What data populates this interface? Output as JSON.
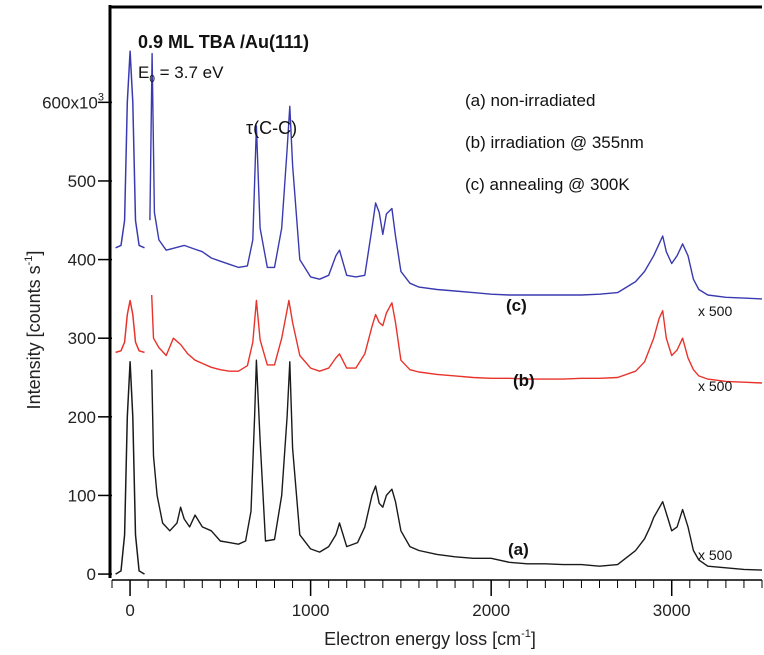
{
  "chart_data": {
    "type": "line",
    "title": "0.9 ML TBA /Au(111)",
    "subtitle": {
      "prefix": "E",
      "subscript": "0",
      "rest": " = 3.7 eV"
    },
    "xlabel": {
      "text": "Electron energy loss [cm",
      "sup": "-1",
      "close": "]"
    },
    "ylabel": {
      "text": "Intensity [counts s",
      "sup": "-1",
      "close": "]"
    },
    "xlim": [
      -100,
      3500
    ],
    "ylim": [
      -5,
      720
    ],
    "x_ticks": [
      0,
      1000,
      2000,
      3000
    ],
    "x_tick_labels": [
      "0",
      "1000",
      "2000",
      "3000"
    ],
    "y_ticks": [
      0,
      100,
      200,
      300,
      400,
      500,
      600
    ],
    "y_tick_labels": [
      "0",
      "100",
      "200",
      "300",
      "400",
      "500",
      "600x10"
    ],
    "y_top_label_sup": "3",
    "legend": [
      "(a) non-irradiated",
      "(b) irradiation @ 355nm",
      "(c) annealing @ 300K"
    ],
    "legend_position": "top-right",
    "peak_annotation": "τ(C-C)",
    "colors": {
      "a": "#1a1a1a",
      "b": "#e8332b",
      "c": "#3a3ab0"
    },
    "series": [
      {
        "name": "(a)",
        "scale_label": "x 500",
        "elastic_x": [
          -80,
          -50,
          -30,
          -15,
          0,
          15,
          30,
          50,
          80
        ],
        "elastic_y": [
          0,
          4,
          50,
          200,
          270,
          200,
          50,
          4,
          0
        ],
        "x": [
          120,
          130,
          150,
          180,
          220,
          260,
          280,
          300,
          330,
          360,
          400,
          450,
          500,
          550,
          600,
          640,
          670,
          690,
          700,
          720,
          750,
          800,
          840,
          870,
          885,
          900,
          940,
          1000,
          1050,
          1100,
          1140,
          1160,
          1200,
          1260,
          1300,
          1340,
          1360,
          1380,
          1400,
          1420,
          1450,
          1470,
          1500,
          1550,
          1600,
          1700,
          1800,
          1900,
          2000,
          2100,
          2200,
          2300,
          2400,
          2500,
          2600,
          2700,
          2800,
          2850,
          2880,
          2900,
          2920,
          2950,
          2980,
          3000,
          3030,
          3060,
          3090,
          3120,
          3150,
          3200,
          3300,
          3400,
          3500
        ],
        "y": [
          260,
          150,
          100,
          65,
          55,
          65,
          85,
          70,
          60,
          75,
          60,
          55,
          42,
          40,
          38,
          42,
          80,
          200,
          272,
          170,
          42,
          44,
          100,
          200,
          270,
          160,
          50,
          32,
          28,
          35,
          50,
          65,
          35,
          40,
          60,
          100,
          112,
          90,
          85,
          100,
          108,
          92,
          55,
          35,
          30,
          25,
          22,
          20,
          20,
          15,
          13,
          13,
          12,
          12,
          10,
          12,
          30,
          45,
          60,
          72,
          80,
          92,
          70,
          55,
          60,
          82,
          60,
          30,
          18,
          10,
          8,
          6,
          5
        ]
      },
      {
        "name": "(b)",
        "scale_label": "x 500",
        "elastic_x": [
          -80,
          -50,
          -30,
          -15,
          0,
          15,
          30,
          50,
          80
        ],
        "elastic_y": [
          282,
          284,
          295,
          330,
          348,
          330,
          295,
          284,
          282
        ],
        "x": [
          120,
          130,
          160,
          200,
          240,
          280,
          320,
          360,
          400,
          450,
          500,
          550,
          600,
          650,
          680,
          700,
          720,
          760,
          800,
          840,
          880,
          900,
          940,
          1000,
          1050,
          1100,
          1140,
          1160,
          1200,
          1250,
          1300,
          1340,
          1360,
          1380,
          1400,
          1420,
          1450,
          1470,
          1500,
          1550,
          1600,
          1700,
          1800,
          1900,
          2000,
          2100,
          2200,
          2300,
          2400,
          2500,
          2600,
          2700,
          2800,
          2850,
          2900,
          2930,
          2950,
          2970,
          3000,
          3030,
          3060,
          3090,
          3120,
          3150,
          3200,
          3300,
          3400,
          3500
        ],
        "y": [
          355,
          300,
          288,
          278,
          300,
          292,
          280,
          272,
          268,
          263,
          260,
          258,
          258,
          265,
          295,
          348,
          298,
          266,
          266,
          300,
          348,
          320,
          278,
          262,
          258,
          262,
          275,
          280,
          262,
          262,
          280,
          315,
          330,
          320,
          316,
          332,
          345,
          320,
          272,
          260,
          257,
          254,
          252,
          250,
          249,
          249,
          248,
          248,
          248,
          249,
          249,
          250,
          258,
          270,
          300,
          325,
          335,
          300,
          278,
          285,
          300,
          275,
          260,
          252,
          248,
          245,
          244,
          243
        ]
      },
      {
        "name": "(c)",
        "scale_label": "x 500",
        "elastic_x": [
          -80,
          -50,
          -30,
          -15,
          0,
          15,
          30,
          50,
          80
        ],
        "elastic_y": [
          415,
          418,
          450,
          600,
          665,
          600,
          450,
          418,
          415
        ],
        "x": [
          110,
          122,
          135,
          160,
          200,
          250,
          300,
          350,
          400,
          450,
          500,
          550,
          600,
          650,
          680,
          700,
          720,
          760,
          800,
          840,
          870,
          885,
          900,
          940,
          1000,
          1050,
          1100,
          1140,
          1160,
          1200,
          1250,
          1300,
          1340,
          1360,
          1380,
          1400,
          1420,
          1450,
          1470,
          1500,
          1550,
          1600,
          1700,
          1800,
          1900,
          2000,
          2100,
          2200,
          2300,
          2400,
          2500,
          2600,
          2700,
          2800,
          2850,
          2900,
          2930,
          2950,
          2970,
          3000,
          3030,
          3060,
          3090,
          3120,
          3150,
          3200,
          3300,
          3400,
          3500
        ],
        "y": [
          450,
          662,
          460,
          425,
          412,
          415,
          418,
          414,
          410,
          402,
          398,
          394,
          390,
          392,
          425,
          570,
          440,
          390,
          390,
          440,
          540,
          595,
          520,
          400,
          378,
          375,
          380,
          405,
          412,
          380,
          378,
          380,
          440,
          472,
          460,
          432,
          458,
          465,
          430,
          385,
          370,
          365,
          362,
          360,
          358,
          356,
          355,
          355,
          355,
          355,
          355,
          356,
          358,
          372,
          385,
          405,
          420,
          430,
          410,
          395,
          405,
          420,
          405,
          375,
          362,
          355,
          352,
          351,
          350
        ]
      }
    ]
  }
}
